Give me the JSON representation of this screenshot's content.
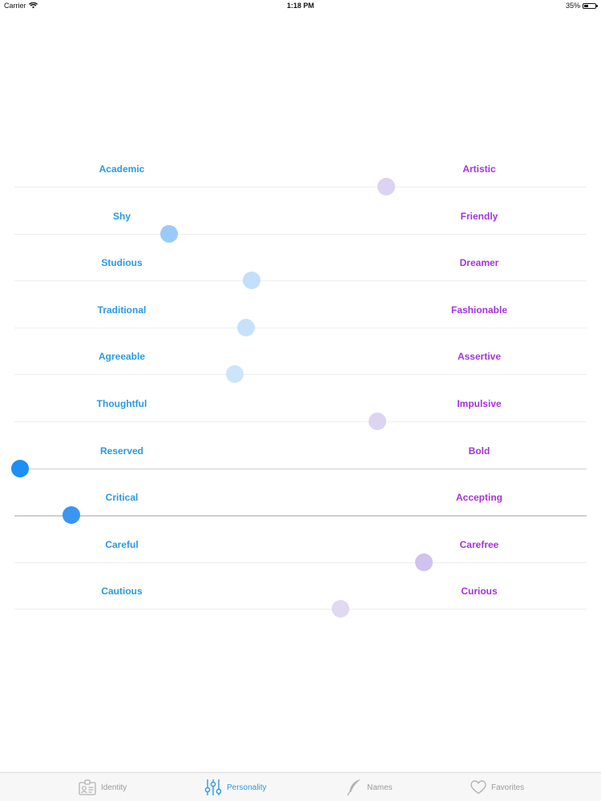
{
  "status_bar": {
    "carrier": "Carrier",
    "time": "1:18 PM",
    "battery": "35%",
    "battery_level": 0.35
  },
  "colors": {
    "left_label": "#2b9ae4",
    "right_label": "#a533de",
    "tab_active": "#2b9ae4",
    "tab_inactive": "#9b9b9b"
  },
  "sliders": [
    {
      "left": "Academic",
      "right": "Artistic",
      "value": 0.65,
      "thumb_color": "#dcd3f2"
    },
    {
      "left": "Shy",
      "right": "Friendly",
      "value": 0.27,
      "thumb_color": "#9ccaf8"
    },
    {
      "left": "Studious",
      "right": "Dreamer",
      "value": 0.415,
      "thumb_color": "#c2e0fb"
    },
    {
      "left": "Traditional",
      "right": "Fashionable",
      "value": 0.405,
      "thumb_color": "#c6e2fb"
    },
    {
      "left": "Agreeable",
      "right": "Assertive",
      "value": 0.385,
      "thumb_color": "#cce5fb"
    },
    {
      "left": "Thoughtful",
      "right": "Impulsive",
      "value": 0.635,
      "thumb_color": "#ddd5ef"
    },
    {
      "left": "Reserved",
      "right": "Bold",
      "value": 0.01,
      "thumb_color": "#1e8ff5"
    },
    {
      "left": "Critical",
      "right": "Accepting",
      "value": 0.1,
      "thumb_color": "#3996f5"
    },
    {
      "left": "Careful",
      "right": "Carefree",
      "value": 0.715,
      "thumb_color": "#d1c2ef"
    },
    {
      "left": "Cautious",
      "right": "Curious",
      "value": 0.57,
      "thumb_color": "#e1d9f2"
    }
  ],
  "tab_bar": {
    "tabs": [
      {
        "label": "Identity",
        "icon": "id-card-icon",
        "active": false
      },
      {
        "label": "Personality",
        "icon": "sliders-icon",
        "active": true
      },
      {
        "label": "Names",
        "icon": "quill-pen-icon",
        "active": false
      },
      {
        "label": "Favorites",
        "icon": "heart-icon",
        "active": false
      }
    ]
  }
}
